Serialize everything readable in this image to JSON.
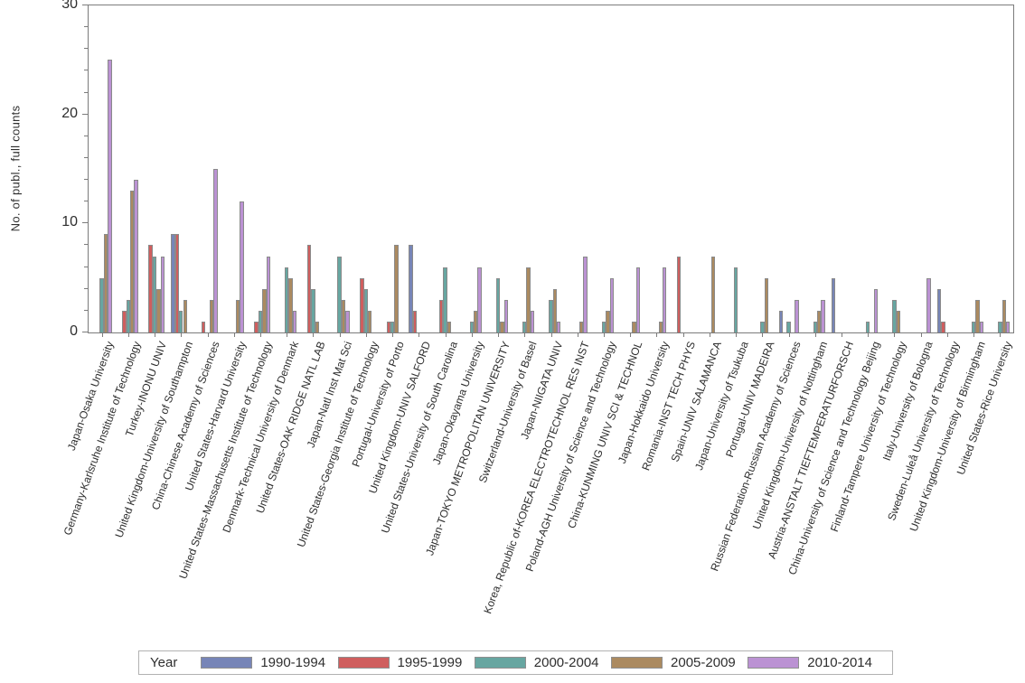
{
  "chart_data": {
    "type": "bar",
    "title": "",
    "xlabel": "",
    "ylabel": "No. of publ., full counts",
    "ylim": [
      0,
      30
    ],
    "y_major_ticks": [
      0,
      10,
      20,
      30
    ],
    "y_minor_tick_step": 2,
    "grid": false,
    "axis_color": "#7c7c7c",
    "text_color": "#2e2e2e",
    "bar_border_color": "#8a8a8a",
    "legend": {
      "title": "Year",
      "position": "bottom"
    },
    "categories": [
      "Japan-Osaka University",
      "Germany-Karlsruhe Institute of Technology",
      "Turkey-INONU UNIV",
      "United Kingdom-University of Southampton",
      "China-Chinese Academy of Sciences",
      "United States-Harvard University",
      "United States-Massachusetts Institute of Technology",
      "Denmark-Technical University of Denmark",
      "United States-OAK RIDGE NATL LAB",
      "Japan-Natl Inst Mat Sci",
      "United States-Georgia Institute of Technology",
      "Portugal-University of Porto",
      "United Kingdom-UNIV SALFORD",
      "United States-University of South Carolina",
      "Japan-Okayama University",
      "Japan-TOKYO METROPOLITAN UNIVERSITY",
      "Switzerland-University of Basel",
      "Japan-NIIGATA UNIV",
      "Korea, Republic of-KOREA ELECTROTECHNOL RES INST",
      "Poland-AGH University of Science and Technology",
      "China-KUNMING UNIV SCI & TECHNOL",
      "Japan-Hokkaido University",
      "Romania-INST TECH PHYS",
      "Spain-UNIV SALAMANCA",
      "Japan-University of Tsukuba",
      "Portugal-UNIV MADEIRA",
      "Russian Federation-Russian Academy of Sciences",
      "United Kingdom-University of Nottingham",
      "Austria-ANSTALT TIEFTEMPERATURFORSCH",
      "China-University of Science and Technology Beijing",
      "Finland-Tampere University of Technology",
      "Italy-University of Bologna",
      "Sweden-Luleå University of Technology",
      "United Kingdom-University of Birmingham",
      "United States-Rice University"
    ],
    "series": [
      {
        "name": "1990-1994",
        "color": "#7785b7",
        "values": [
          0,
          0,
          0,
          9,
          0,
          0,
          0,
          0,
          0,
          0,
          0,
          0,
          8,
          0,
          0,
          0,
          0,
          0,
          0,
          0,
          0,
          0,
          0,
          0,
          0,
          0,
          2,
          0,
          5,
          0,
          0,
          0,
          4,
          0,
          0
        ]
      },
      {
        "name": "1995-1999",
        "color": "#cf5e5e",
        "values": [
          0,
          2,
          8,
          9,
          1,
          0,
          1,
          0,
          8,
          0,
          5,
          1,
          2,
          3,
          0,
          0,
          0,
          0,
          0,
          0,
          0,
          0,
          7,
          0,
          0,
          0,
          0,
          0,
          0,
          0,
          0,
          0,
          1,
          0,
          0
        ]
      },
      {
        "name": "2000-2004",
        "color": "#67a6a1",
        "values": [
          5,
          3,
          7,
          2,
          0,
          0,
          2,
          6,
          4,
          7,
          4,
          1,
          0,
          6,
          1,
          5,
          1,
          3,
          0,
          1,
          0,
          0,
          0,
          0,
          6,
          1,
          1,
          1,
          0,
          1,
          3,
          0,
          0,
          1,
          1
        ]
      },
      {
        "name": "2005-2009",
        "color": "#ab8a60",
        "values": [
          9,
          13,
          4,
          3,
          3,
          3,
          4,
          5,
          1,
          3,
          2,
          8,
          0,
          1,
          2,
          1,
          6,
          4,
          1,
          2,
          1,
          1,
          0,
          7,
          0,
          5,
          0,
          2,
          0,
          0,
          2,
          0,
          0,
          3,
          3
        ]
      },
      {
        "name": "2010-2014",
        "color": "#bb92d3",
        "values": [
          25,
          14,
          7,
          0,
          15,
          12,
          7,
          2,
          0,
          2,
          0,
          0,
          0,
          0,
          6,
          3,
          2,
          1,
          7,
          5,
          6,
          6,
          0,
          0,
          0,
          0,
          3,
          3,
          0,
          4,
          0,
          5,
          0,
          1,
          1
        ]
      }
    ]
  }
}
